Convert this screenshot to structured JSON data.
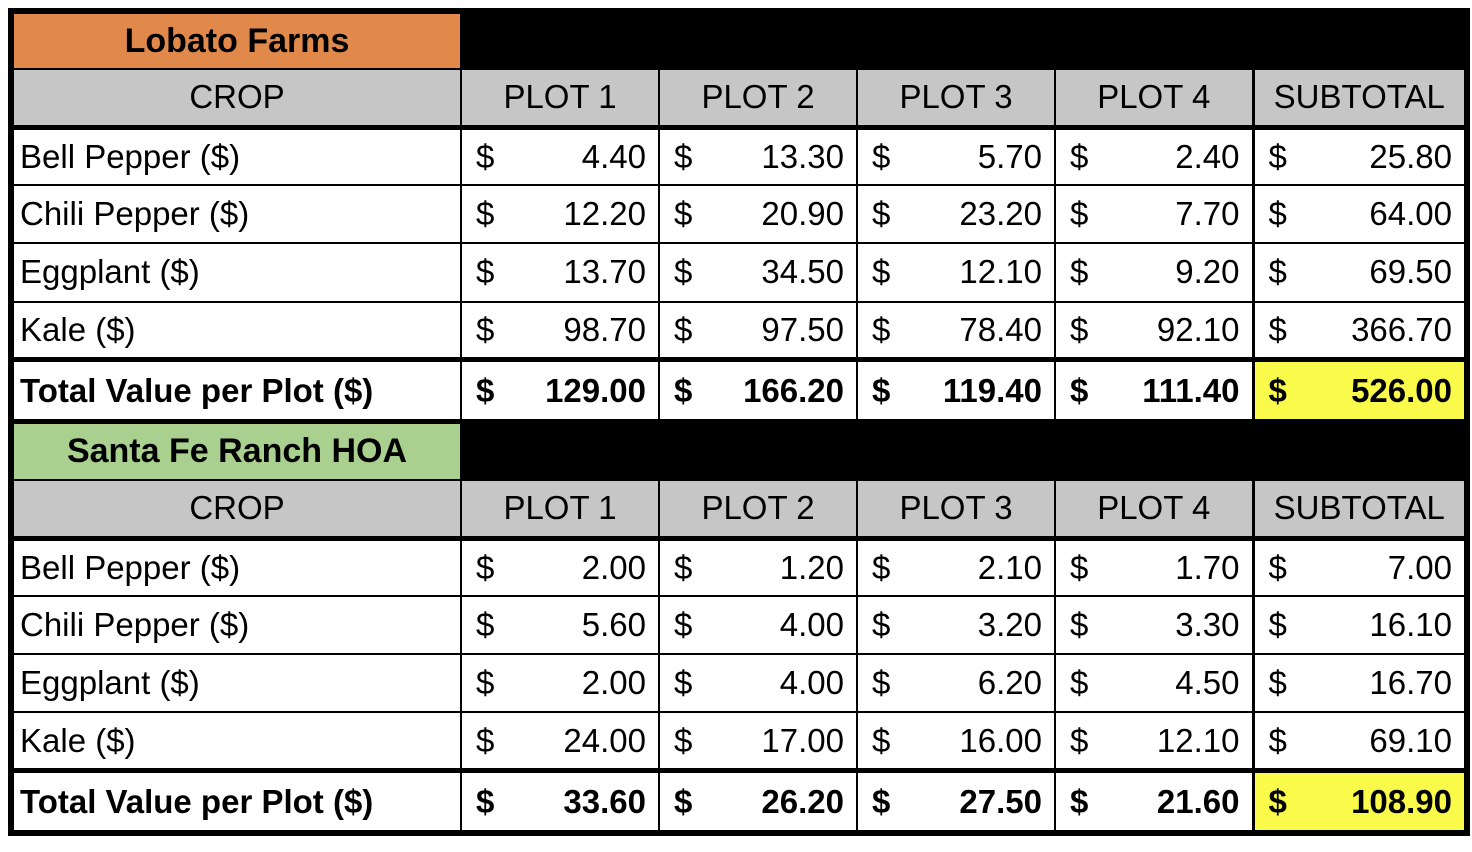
{
  "currency": "$",
  "colors": {
    "lobato_title_bg": "#E0894A",
    "santafe_title_bg": "#A9D08E",
    "column_header_bg": "#C6C6C6",
    "subtotal_highlight_bg": "#FAFA4B",
    "stripe_bg": "#000000",
    "border": "#000000"
  },
  "columns": [
    "CROP",
    "PLOT 1",
    "PLOT 2",
    "PLOT 3",
    "PLOT 4",
    "SUBTOTAL"
  ],
  "sections": [
    {
      "id": "lobato-farms",
      "title": "Lobato Farms",
      "title_bg": "#E0894A",
      "rows": [
        {
          "label": "Bell Pepper ($)",
          "values": [
            "4.40",
            "13.30",
            "5.70",
            "2.40",
            "25.80"
          ]
        },
        {
          "label": "Chili Pepper ($)",
          "values": [
            "12.20",
            "20.90",
            "23.20",
            "7.70",
            "64.00"
          ]
        },
        {
          "label": "Eggplant ($)",
          "values": [
            "13.70",
            "34.50",
            "12.10",
            "9.20",
            "69.50"
          ]
        },
        {
          "label": "Kale ($)",
          "values": [
            "98.70",
            "97.50",
            "78.40",
            "92.10",
            "366.70"
          ]
        }
      ],
      "total": {
        "label": "Total Value per Plot ($)",
        "values": [
          "129.00",
          "166.20",
          "119.40",
          "111.40",
          "526.00"
        ]
      }
    },
    {
      "id": "santa-fe-ranch-hoa",
      "title": "Santa Fe Ranch HOA",
      "title_bg": "#A9D08E",
      "rows": [
        {
          "label": "Bell Pepper ($)",
          "values": [
            "2.00",
            "1.20",
            "2.10",
            "1.70",
            "7.00"
          ]
        },
        {
          "label": "Chili Pepper ($)",
          "values": [
            "5.60",
            "4.00",
            "3.20",
            "3.30",
            "16.10"
          ]
        },
        {
          "label": "Eggplant ($)",
          "values": [
            "2.00",
            "4.00",
            "6.20",
            "4.50",
            "16.70"
          ]
        },
        {
          "label": "Kale ($)",
          "values": [
            "24.00",
            "17.00",
            "16.00",
            "12.10",
            "69.10"
          ]
        }
      ],
      "total": {
        "label": "Total Value per Plot ($)",
        "values": [
          "33.60",
          "26.20",
          "27.50",
          "21.60",
          "108.90"
        ]
      }
    }
  ],
  "chart_data": [
    {
      "type": "table",
      "title": "Lobato Farms",
      "columns": [
        "CROP",
        "PLOT 1",
        "PLOT 2",
        "PLOT 3",
        "PLOT 4",
        "SUBTOTAL"
      ],
      "rows": [
        [
          "Bell Pepper ($)",
          4.4,
          13.3,
          5.7,
          2.4,
          25.8
        ],
        [
          "Chili Pepper ($)",
          12.2,
          20.9,
          23.2,
          7.7,
          64.0
        ],
        [
          "Eggplant ($)",
          13.7,
          34.5,
          12.1,
          9.2,
          69.5
        ],
        [
          "Kale ($)",
          98.7,
          97.5,
          78.4,
          92.1,
          366.7
        ],
        [
          "Total Value per Plot ($)",
          129.0,
          166.2,
          119.4,
          111.4,
          526.0
        ]
      ]
    },
    {
      "type": "table",
      "title": "Santa Fe Ranch HOA",
      "columns": [
        "CROP",
        "PLOT 1",
        "PLOT 2",
        "PLOT 3",
        "PLOT 4",
        "SUBTOTAL"
      ],
      "rows": [
        [
          "Bell Pepper ($)",
          2.0,
          1.2,
          2.1,
          1.7,
          7.0
        ],
        [
          "Chili Pepper ($)",
          5.6,
          4.0,
          3.2,
          3.3,
          16.1
        ],
        [
          "Eggplant ($)",
          2.0,
          4.0,
          6.2,
          4.5,
          16.7
        ],
        [
          "Kale ($)",
          24.0,
          17.0,
          16.0,
          12.1,
          69.1
        ],
        [
          "Total Value per Plot ($)",
          33.6,
          26.2,
          27.5,
          21.6,
          108.9
        ]
      ]
    }
  ]
}
